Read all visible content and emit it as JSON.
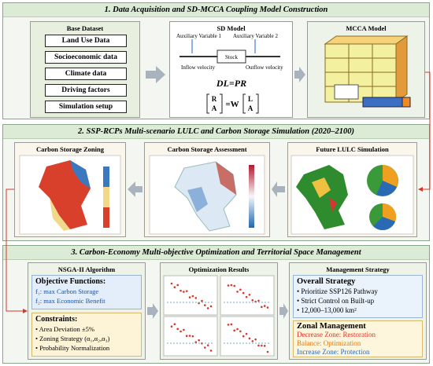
{
  "sections": [
    {
      "title": "1. Data Acquisition and SD-MCCA Coupling Model Construction"
    },
    {
      "title": "2. SSP-RCPs Multi-scenario LULC and Carbon Storage Simulation (2020–2100)"
    },
    {
      "title": "3. Carbon-Economy Multi-objective Optimization and Territorial Space Management"
    }
  ],
  "base_dataset": {
    "title": "Base Dataset",
    "items": [
      "Land Use Data",
      "Socioeconomic data",
      "Climate data",
      "Driving factors",
      "Simulation setup"
    ]
  },
  "sd_model": {
    "title": "SD Model",
    "aux1": "Auxiliary Variable 1",
    "aux2": "Auxiliary Variable 2",
    "stock": "Stock",
    "inflow": "Inflow velocity",
    "outflow": "Outflow velocity",
    "equation": "DL=PR",
    "matrix_left": [
      "R",
      "A"
    ],
    "matrix_operator": "=W",
    "matrix_right": [
      "L",
      "A"
    ]
  },
  "mcca_model": {
    "title": "MCCA Model"
  },
  "carbon_storage_zoning": {
    "title": "Carbon Storage Zoning"
  },
  "carbon_storage_assessment": {
    "title": "Carbon Storage Assessment"
  },
  "future_lulc_simulation": {
    "title": "Future LULC Simulation"
  },
  "nsga": {
    "title": "NSGA-II Algorithm",
    "objective_heading": "Objective Functions:",
    "objectives": [
      "f₁: max Carbon Storage",
      "f₂: max Economic Benefit"
    ],
    "constraint_heading": "Constraints:",
    "constraints": [
      "• Area Deviation ±5%",
      "• Zoning Strategy (α₁,α₂,α₃)",
      "• Probability Normalization"
    ]
  },
  "optimization_results": {
    "title": "Optimization Results"
  },
  "management": {
    "title": "Management Strategy",
    "overall_heading": "Overall Strategy",
    "overall": [
      "• Prioritize SSP126 Pathway",
      "• Strict Control on Built-up",
      "• 12,000–13,000 km²"
    ],
    "zonal_heading": "Zonal Management",
    "zonal": [
      "Decrease Zone: Restoration",
      "Balance: Optimization",
      "Increase Zone: Protection"
    ]
  }
}
